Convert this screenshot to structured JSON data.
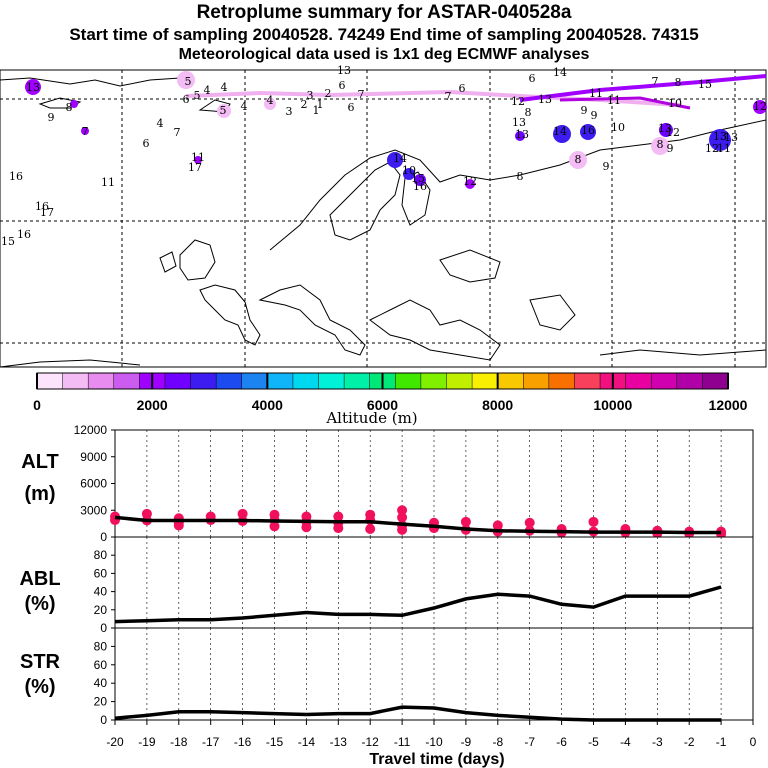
{
  "header": {
    "title": "Retroplume summary for ASTAR-040528a",
    "sampling": "Start time of sampling 20040528. 74249     End time of sampling 20040528. 74315",
    "met": "Meteorological data used is 1x1 deg ECMWF analyses"
  },
  "colorbar": {
    "label": "Altitude (m)",
    "ticks": [
      "0",
      "2000",
      "4000",
      "6000",
      "8000",
      "10000",
      "12000"
    ],
    "colors": [
      "#fce4fc",
      "#f4bcf4",
      "#e88cf0",
      "#cc5cf0",
      "#a000ff",
      "#7000ff",
      "#3c1cf0",
      "#1c4cf0",
      "#1c84f0",
      "#10b4f8",
      "#00d8f0",
      "#00f0d8",
      "#00f0a8",
      "#00e878",
      "#40e800",
      "#80f000",
      "#c0f000",
      "#f8f000",
      "#f8c800",
      "#f8a000",
      "#f87000",
      "#f8405c",
      "#f01080",
      "#e800a0",
      "#d000b0",
      "#b000a8",
      "#900090"
    ]
  },
  "map_labels": [
    "13",
    "9",
    "8",
    "7",
    "6",
    "5",
    "6",
    "5",
    "4",
    "5",
    "4",
    "4",
    "4",
    "3",
    "2",
    "1",
    "1",
    "3",
    "2",
    "6",
    "13",
    "6",
    "7",
    "6",
    "7",
    "6",
    "14",
    "7",
    "8",
    "15",
    "12",
    "13",
    "8",
    "9",
    "9",
    "10",
    "11",
    "10",
    "11",
    "12",
    "4",
    "7",
    "16",
    "15",
    "16",
    "17",
    "16",
    "14",
    "16",
    "13",
    "12",
    "13",
    "12",
    "11",
    "8",
    "8",
    "10",
    "14",
    "15",
    "16",
    "12",
    "11",
    "17",
    "13",
    "13",
    "9",
    "8",
    "9",
    "11",
    "13"
  ],
  "chart_data": [
    {
      "type": "scatter+line",
      "panel": "ALT",
      "ylabel_line1": "ALT",
      "ylabel_line2": "(m)",
      "ylim": [
        0,
        12000
      ],
      "yticks": [
        "12000",
        "9000",
        "6000",
        "3000",
        "0"
      ],
      "line_x": [
        -20,
        -19,
        -18,
        -17,
        -16,
        -15,
        -14,
        -13,
        -12,
        -11,
        -10,
        -9,
        -8,
        -7,
        -6,
        -5,
        -4,
        -3,
        -2,
        -1
      ],
      "line_y": [
        2200,
        1850,
        1850,
        1850,
        1850,
        1800,
        1750,
        1700,
        1700,
        1450,
        1200,
        900,
        700,
        650,
        600,
        550,
        550,
        550,
        500,
        500
      ],
      "points": [
        {
          "x": -20,
          "y": 2300
        },
        {
          "x": -20,
          "y": 1900
        },
        {
          "x": -19,
          "y": 2600
        },
        {
          "x": -19,
          "y": 1850
        },
        {
          "x": -18,
          "y": 2100
        },
        {
          "x": -18,
          "y": 1300
        },
        {
          "x": -18,
          "y": 1600
        },
        {
          "x": -17,
          "y": 2300
        },
        {
          "x": -17,
          "y": 1900
        },
        {
          "x": -16,
          "y": 2600
        },
        {
          "x": -16,
          "y": 1800
        },
        {
          "x": -15,
          "y": 2500
        },
        {
          "x": -15,
          "y": 1900
        },
        {
          "x": -15,
          "y": 1200
        },
        {
          "x": -14,
          "y": 2300
        },
        {
          "x": -14,
          "y": 1700
        },
        {
          "x": -14,
          "y": 1100
        },
        {
          "x": -13,
          "y": 2300
        },
        {
          "x": -13,
          "y": 1600
        },
        {
          "x": -13,
          "y": 1000
        },
        {
          "x": -12,
          "y": 2500
        },
        {
          "x": -12,
          "y": 1900
        },
        {
          "x": -12,
          "y": 900
        },
        {
          "x": -11,
          "y": 3000
        },
        {
          "x": -11,
          "y": 2200
        },
        {
          "x": -11,
          "y": 1300
        },
        {
          "x": -11,
          "y": 800
        },
        {
          "x": -10,
          "y": 1600
        },
        {
          "x": -10,
          "y": 1000
        },
        {
          "x": -9,
          "y": 1700
        },
        {
          "x": -9,
          "y": 800
        },
        {
          "x": -8,
          "y": 1300
        },
        {
          "x": -8,
          "y": 600
        },
        {
          "x": -7,
          "y": 1600
        },
        {
          "x": -7,
          "y": 700
        },
        {
          "x": -6,
          "y": 900
        },
        {
          "x": -6,
          "y": 500
        },
        {
          "x": -5,
          "y": 1700
        },
        {
          "x": -5,
          "y": 600
        },
        {
          "x": -4,
          "y": 900
        },
        {
          "x": -4,
          "y": 500
        },
        {
          "x": -3,
          "y": 700
        },
        {
          "x": -3,
          "y": 400
        },
        {
          "x": -2,
          "y": 600
        },
        {
          "x": -2,
          "y": 400
        },
        {
          "x": -1,
          "y": 600
        },
        {
          "x": -1,
          "y": 350
        }
      ]
    },
    {
      "type": "line",
      "panel": "ABL",
      "ylabel_line1": "ABL",
      "ylabel_line2": "(%)",
      "ylim": [
        0,
        100
      ],
      "yticks": [
        "80",
        "60",
        "40",
        "20",
        "0"
      ],
      "x": [
        -20,
        -19,
        -18,
        -17,
        -16,
        -15,
        -14,
        -13,
        -12,
        -11,
        -10,
        -9,
        -8,
        -7,
        -6,
        -5,
        -4,
        -3,
        -2,
        -1
      ],
      "y": [
        7,
        8,
        9,
        9,
        11,
        14,
        17,
        15,
        15,
        14,
        22,
        32,
        37,
        35,
        26,
        23,
        35,
        35,
        35,
        45
      ]
    },
    {
      "type": "line",
      "panel": "STR",
      "ylabel_line1": "STR",
      "ylabel_line2": "(%)",
      "ylim": [
        0,
        100
      ],
      "yticks": [
        "80",
        "60",
        "40",
        "20",
        "0"
      ],
      "x": [
        -20,
        -19,
        -18,
        -17,
        -16,
        -15,
        -14,
        -13,
        -12,
        -11,
        -10,
        -9,
        -8,
        -7,
        -6,
        -5,
        -4,
        -3,
        -2,
        -1
      ],
      "y": [
        2,
        5,
        9,
        9,
        8,
        7,
        6,
        7,
        7,
        14,
        13,
        8,
        5,
        3,
        1,
        0,
        0,
        0,
        0,
        0
      ]
    }
  ],
  "xaxis": {
    "label": "Travel time (days)",
    "ticks": [
      "-20",
      "-19",
      "-18",
      "-17",
      "-16",
      "-15",
      "-14",
      "-13",
      "-12",
      "-11",
      "-10",
      "-9",
      "-8",
      "-7",
      "-6",
      "-5",
      "-4",
      "-3",
      "-2",
      "-1",
      "0"
    ],
    "xlim": [
      -20,
      0
    ]
  }
}
